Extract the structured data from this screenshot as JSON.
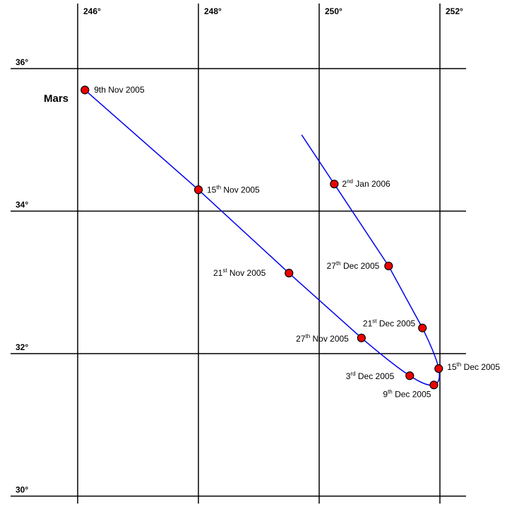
{
  "chart_data": {
    "type": "line",
    "title": "Mars",
    "xlabel": "",
    "ylabel": "",
    "x_ticks": [
      "246°",
      "248°",
      "250°",
      "252°"
    ],
    "y_ticks": [
      "36°",
      "34°",
      "32°",
      "30°"
    ],
    "x_tick_values": [
      246,
      248,
      250,
      252
    ],
    "y_tick_values": [
      36,
      34,
      32,
      30
    ],
    "grid": true,
    "line_color": "#0000ee",
    "marker_color": "#ee0000",
    "series": [
      {
        "points": [
          {
            "x": 246.12,
            "y": 35.7,
            "label": "9th Nov 2005"
          },
          {
            "x": 248.0,
            "y": 34.3,
            "label": "15th Nov 2005",
            "day": "15",
            "sup": "th",
            "rest": " Nov 2005"
          },
          {
            "x": 249.5,
            "y": 33.13,
            "label": "21st Nov 2005",
            "day": "21",
            "sup": "st",
            "rest": " Nov 2005"
          },
          {
            "x": 250.7,
            "y": 32.22,
            "label": "27th Nov 2005",
            "day": "27",
            "sup": "th",
            "rest": " Nov 2005"
          },
          {
            "x": 251.5,
            "y": 31.69,
            "label": "3rd Dec 2005",
            "day": "3",
            "sup": "rd",
            "rest": " Dec 2005"
          },
          {
            "x": 251.9,
            "y": 31.56,
            "label": "9th Dec 2005",
            "day": "9",
            "sup": "th",
            "rest": " Dec 2005"
          },
          {
            "x": 251.98,
            "y": 31.79,
            "label": "15th Dec 2005",
            "day": "15",
            "sup": "th",
            "rest": " Dec 2005"
          },
          {
            "x": 251.71,
            "y": 32.36,
            "label": "21st Dec 2005",
            "day": "21",
            "sup": "st",
            "rest": " Dec 2005"
          },
          {
            "x": 251.15,
            "y": 33.23,
            "label": "27th Dec 2005",
            "day": "27",
            "sup": "th",
            "rest": " Dec 2005"
          },
          {
            "x": 250.25,
            "y": 34.38,
            "label": "2nd Jan 2006",
            "day": "2",
            "sup": "nd",
            "rest": " Jan 2006"
          }
        ]
      }
    ]
  }
}
